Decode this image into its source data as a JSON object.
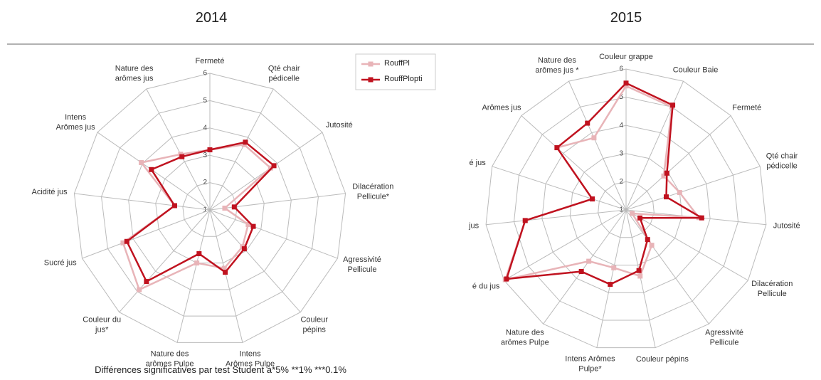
{
  "chart_data": [
    {
      "type": "radar",
      "title": "2014",
      "categories": [
        "Fermeté",
        "Qté chair\npédicelle",
        "Jutosité",
        "Dilacération\nPellicule*",
        "Agressivité\nPellicule",
        "Couleur\npépins",
        "Intens\nArômes Pulpe",
        "Nature des\narômes Pulpe",
        "Couleur du\njus*",
        "Sucré jus",
        "Acidité jus",
        "Intens\nArômes jus",
        "Nature des\narômes jus"
      ],
      "series": [
        {
          "name": "RouffPl",
          "color": "#e8b4b8",
          "values": [
            3.2,
            3.7,
            3.7,
            1.55,
            2.5,
            2.8,
            3.2,
            3.0,
            4.9,
            4.4,
            2.3,
            4.05,
            3.3
          ]
        },
        {
          "name": "RouffPlopti",
          "color": "#c0121f",
          "values": [
            3.2,
            3.8,
            3.85,
            1.9,
            2.7,
            2.9,
            3.35,
            2.65,
            4.5,
            4.25,
            2.3,
            3.6,
            3.2
          ]
        }
      ],
      "ylim": [
        1,
        6
      ],
      "yticks": [
        1,
        2,
        3,
        4,
        5,
        6
      ],
      "grid": true,
      "legend": "upper right",
      "note": "Différences significatives par test Student à*5% **1% ***0.1%"
    },
    {
      "type": "radar",
      "title": "2015",
      "categories": [
        "Couleur grappe",
        "Couleur Baie",
        "Fermeté",
        "Qté chair\npédicelle",
        "Jutosité",
        "Dilacération\nPellicule",
        "Agressivité\nPellicule",
        "Couleur pépins",
        "Intens Arômes\nPulpe*",
        "Nature des\narômes Pulpe",
        "é du jus",
        "jus",
        "é jus",
        "Arômes jus",
        "Nature des\narômes jus *"
      ],
      "series": [
        {
          "color": "#e8b4b8",
          "values": [
            5.4,
            5.0,
            2.8,
            3.0,
            3.6,
            1.25,
            2.55,
            3.4,
            3.1,
            3.25,
            5.95,
            4.6,
            2.26,
            4.3,
            3.8
          ]
        },
        {
          "color": "#c0121f",
          "values": [
            5.5,
            5.07,
            2.95,
            2.5,
            3.7,
            1.57,
            2.3,
            3.2,
            3.7,
            3.7,
            5.9,
            4.6,
            2.26,
            4.3,
            4.37
          ]
        }
      ],
      "ylim": [
        1,
        6
      ],
      "yticks": [
        1,
        2,
        3,
        4,
        5,
        6
      ],
      "grid": true
    }
  ]
}
